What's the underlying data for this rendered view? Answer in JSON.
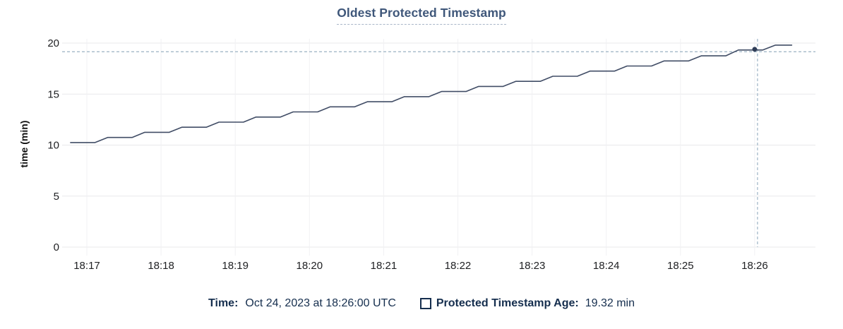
{
  "header": {
    "title": "Oldest Protected Timestamp"
  },
  "chart_data": {
    "type": "line",
    "title": "Oldest Protected Timestamp",
    "xlabel": "",
    "ylabel": "time (min)",
    "ylim": [
      0,
      20
    ],
    "y_ticks": [
      0,
      5,
      10,
      15,
      20
    ],
    "x_ticks": [
      {
        "minute": 17,
        "label": "18:17"
      },
      {
        "minute": 18,
        "label": "18:18"
      },
      {
        "minute": 19,
        "label": "18:19"
      },
      {
        "minute": 20,
        "label": "18:20"
      },
      {
        "minute": 21,
        "label": "18:21"
      },
      {
        "minute": 22,
        "label": "18:22"
      },
      {
        "minute": 23,
        "label": "18:23"
      },
      {
        "minute": 24,
        "label": "18:24"
      },
      {
        "minute": 25,
        "label": "18:25"
      },
      {
        "minute": 26,
        "label": "18:26"
      }
    ],
    "xlim_minutes": [
      16.68,
      26.82
    ],
    "grid": true,
    "legend_position": "bottom",
    "series": [
      {
        "name": "Protected Timestamp Age",
        "unit": "min",
        "points": [
          [
            16.78,
            10.25
          ],
          [
            17.11,
            10.25
          ],
          [
            17.28,
            10.75
          ],
          [
            17.61,
            10.75
          ],
          [
            17.78,
            11.25
          ],
          [
            18.11,
            11.25
          ],
          [
            18.28,
            11.75
          ],
          [
            18.61,
            11.75
          ],
          [
            18.78,
            12.25
          ],
          [
            19.11,
            12.25
          ],
          [
            19.28,
            12.75
          ],
          [
            19.61,
            12.75
          ],
          [
            19.78,
            13.25
          ],
          [
            20.11,
            13.25
          ],
          [
            20.28,
            13.75
          ],
          [
            20.61,
            13.75
          ],
          [
            20.78,
            14.25
          ],
          [
            21.11,
            14.25
          ],
          [
            21.28,
            14.75
          ],
          [
            21.61,
            14.75
          ],
          [
            21.78,
            15.25
          ],
          [
            22.11,
            15.25
          ],
          [
            22.28,
            15.75
          ],
          [
            22.61,
            15.75
          ],
          [
            22.78,
            16.25
          ],
          [
            23.11,
            16.25
          ],
          [
            23.28,
            16.75
          ],
          [
            23.61,
            16.75
          ],
          [
            23.78,
            17.25
          ],
          [
            24.11,
            17.25
          ],
          [
            24.28,
            17.75
          ],
          [
            24.61,
            17.75
          ],
          [
            24.78,
            18.25
          ],
          [
            25.11,
            18.25
          ],
          [
            25.28,
            18.75
          ],
          [
            25.61,
            18.75
          ],
          [
            25.78,
            19.32
          ],
          [
            26.11,
            19.32
          ],
          [
            26.28,
            19.8
          ],
          [
            26.5,
            19.8
          ]
        ]
      }
    ],
    "hover": {
      "minute": 26.0,
      "time_label": "18:26:00",
      "value": 19.32
    }
  },
  "tooltip": {
    "time_label": "Time:",
    "time_value": "Oct 24, 2023 at 18:26:00 UTC",
    "series_label": "Protected Timestamp Age:",
    "series_value": "19.32 min"
  },
  "colors": {
    "title_blue": "#3f577a",
    "legend_navy": "#152e4e",
    "series_line": "#414d66",
    "hover_dot": "#2f3d57",
    "crosshair": "#a4b9c9",
    "gridline_h": "#e9e9eb",
    "gridline_v": "#f1f1f3",
    "tick_text": "#202124"
  }
}
